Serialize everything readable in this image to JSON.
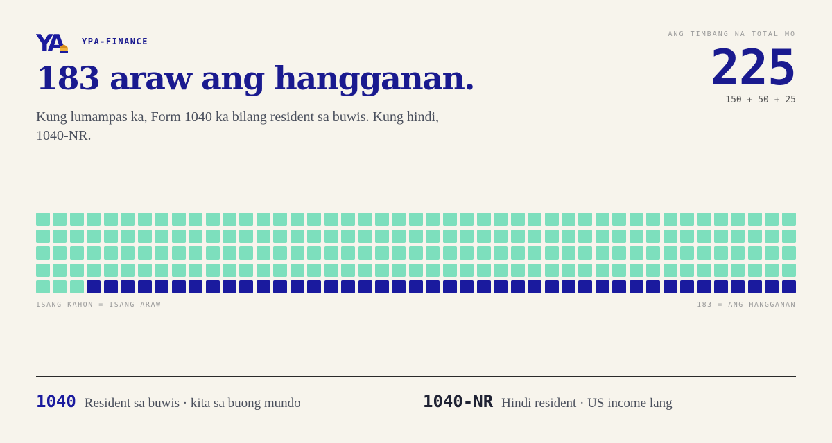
{
  "brand": {
    "name": "YPA-FINANCE",
    "logo_icon": "ypa-finance-logo"
  },
  "header": {
    "title": "183 araw ang hangganan.",
    "subtitle": "Kung lumampas ka, Form 1040 ka bilang resident sa buwis. Kung hindi, 1040-NR."
  },
  "total": {
    "label": "ANG TIMBANG NA TOTAL MO",
    "value": "225",
    "breakdown": "150 + 50 + 25"
  },
  "waffle": {
    "total_cells": 225,
    "threshold": 183,
    "rows": 5,
    "columns": 45,
    "light_color": "#7ddfbd",
    "dark_color": "#1a1a9e",
    "caption_left": "ISANG KAHON = ISANG ARAW",
    "caption_right": "183 = ANG HANGGANAN"
  },
  "legend": [
    {
      "code": "1040",
      "description": "Resident sa buwis · kita sa buong mundo",
      "color": "#1a1a9e"
    },
    {
      "code": "1040-NR",
      "description": "Hindi resident · US income lang",
      "color": "#1f2233"
    }
  ]
}
